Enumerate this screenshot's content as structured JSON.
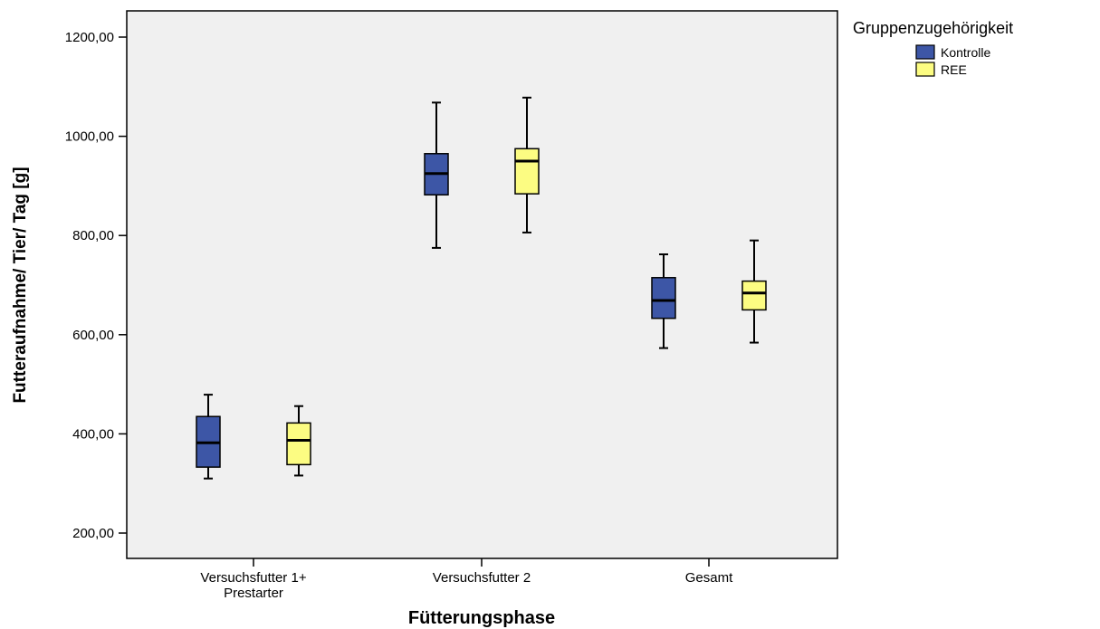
{
  "chart_data": {
    "type": "boxplot",
    "xlabel": "Fütterungsphase",
    "ylabel": "Futteraufnahme/ Tier/ Tag [g]",
    "ylim": [
      140,
      1265
    ],
    "yticks": [
      200,
      400,
      600,
      800,
      1000,
      1200
    ],
    "ytick_labels": [
      "200,00",
      "400,00",
      "600,00",
      "800,00",
      "1000,00",
      "1200,00"
    ],
    "categories": [
      {
        "lines": [
          "Versuchsfutter 1+",
          "Prestarter"
        ]
      },
      {
        "lines": [
          "Versuchsfutter 2"
        ]
      },
      {
        "lines": [
          "Gesamt"
        ]
      }
    ],
    "legend": {
      "title": "Gruppenzugehörigkeit",
      "position": "top-right"
    },
    "grid": false,
    "plot_background": "#f0f0f0",
    "series": [
      {
        "name": "Kontrolle",
        "color": "#3d56a6",
        "boxes": [
          {
            "min": 310,
            "q1": 333,
            "median": 382,
            "q3": 435,
            "max": 479
          },
          {
            "min": 775,
            "q1": 882,
            "median": 925,
            "q3": 965,
            "max": 1068
          },
          {
            "min": 573,
            "q1": 633,
            "median": 669,
            "q3": 715,
            "max": 762
          }
        ]
      },
      {
        "name": "REE",
        "color": "#fcfc82",
        "boxes": [
          {
            "min": 316,
            "q1": 338,
            "median": 387,
            "q3": 422,
            "max": 456
          },
          {
            "min": 806,
            "q1": 884,
            "median": 950,
            "q3": 975,
            "max": 1078
          },
          {
            "min": 584,
            "q1": 650,
            "median": 684,
            "q3": 708,
            "max": 790
          }
        ]
      }
    ]
  }
}
